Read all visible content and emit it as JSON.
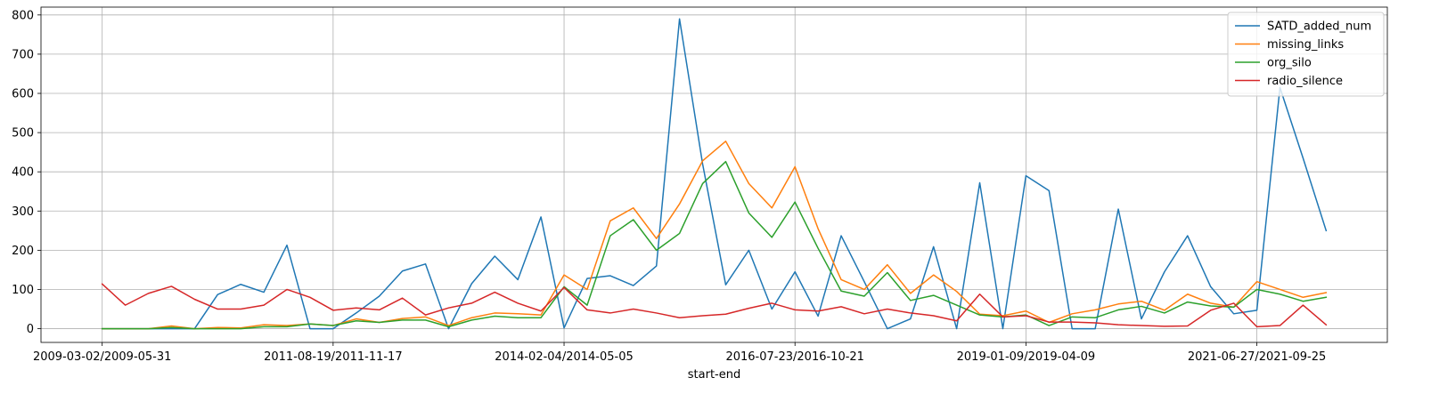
{
  "chart_data": {
    "type": "line",
    "xlabel": "start-end",
    "ylabel": "",
    "ylim": [
      -35,
      820
    ],
    "x_tick_labels": [
      "2009-03-02/2009-05-31",
      "2011-08-19/2011-11-17",
      "2014-02-04/2014-05-05",
      "2016-07-23/2016-10-21",
      "2019-01-09/2019-04-09",
      "2021-06-27/2021-09-25"
    ],
    "x_tick_positions": [
      0,
      10,
      20,
      30,
      40,
      50
    ],
    "y_ticks": [
      0,
      100,
      200,
      300,
      400,
      500,
      600,
      700,
      800
    ],
    "grid": true,
    "legend_position": "top-right",
    "x": [
      0,
      1,
      2,
      3,
      4,
      5,
      6,
      7,
      8,
      9,
      10,
      11,
      12,
      13,
      14,
      15,
      16,
      17,
      18,
      19,
      20,
      21,
      22,
      23,
      24,
      25,
      26,
      27,
      28,
      29,
      30,
      31,
      32,
      33,
      34,
      35,
      36,
      37,
      38,
      39,
      40,
      41,
      42,
      43,
      44,
      45,
      46,
      47,
      48,
      49,
      50,
      51,
      52,
      53
    ],
    "series": [
      {
        "name": "SATD_added_num",
        "color": "#1f77b4",
        "values": [
          0,
          0,
          0,
          0,
          0,
          87,
          113,
          93,
          213,
          0,
          0,
          40,
          83,
          147,
          165,
          0,
          115,
          185,
          125,
          285,
          2,
          128,
          135,
          110,
          160,
          790,
          420,
          112,
          200,
          50,
          145,
          32,
          237,
          120,
          0,
          25,
          209,
          0,
          372,
          0,
          390,
          352,
          0,
          0,
          305,
          25,
          145,
          237,
          107,
          38,
          47,
          615,
          435,
          250
        ]
      },
      {
        "name": "missing_links",
        "color": "#ff7f0e",
        "values": [
          0,
          0,
          0,
          7,
          0,
          3,
          2,
          10,
          8,
          12,
          8,
          25,
          16,
          26,
          30,
          8,
          28,
          40,
          38,
          35,
          137,
          100,
          275,
          308,
          230,
          318,
          428,
          478,
          370,
          308,
          413,
          255,
          125,
          100,
          163,
          90,
          137,
          95,
          37,
          33,
          45,
          16,
          38,
          48,
          63,
          70,
          47,
          88,
          65,
          55,
          120,
          100,
          80,
          92
        ]
      },
      {
        "name": "org_silo",
        "color": "#2ca02c",
        "values": [
          0,
          0,
          0,
          3,
          0,
          0,
          0,
          5,
          5,
          12,
          8,
          20,
          16,
          22,
          22,
          5,
          22,
          32,
          28,
          28,
          107,
          60,
          237,
          278,
          200,
          243,
          370,
          426,
          295,
          233,
          323,
          205,
          96,
          83,
          143,
          72,
          85,
          60,
          35,
          30,
          35,
          8,
          30,
          28,
          48,
          57,
          40,
          68,
          58,
          55,
          100,
          88,
          70,
          80
        ]
      },
      {
        "name": "radio_silence",
        "color": "#d62728",
        "values": [
          114,
          60,
          90,
          108,
          75,
          50,
          50,
          60,
          100,
          80,
          47,
          53,
          48,
          78,
          35,
          53,
          65,
          93,
          65,
          45,
          105,
          48,
          40,
          50,
          40,
          28,
          33,
          37,
          52,
          65,
          48,
          45,
          56,
          38,
          50,
          40,
          33,
          20,
          88,
          30,
          33,
          17,
          17,
          15,
          10,
          8,
          6,
          7,
          47,
          65,
          5,
          8,
          60,
          10
        ]
      }
    ]
  }
}
